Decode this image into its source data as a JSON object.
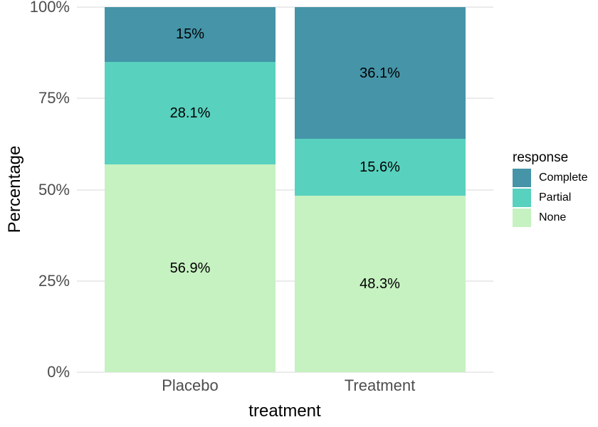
{
  "chart_data": {
    "type": "bar",
    "subtype": "stacked_percentage",
    "title": "",
    "xlabel": "treatment",
    "ylabel": "Percentage",
    "categories": [
      "Placebo",
      "Treatment"
    ],
    "series": [
      {
        "name": "Complete",
        "color": "#4594A8",
        "values": [
          15,
          36.1
        ],
        "labels": [
          "15%",
          "36.1%"
        ]
      },
      {
        "name": "Partial",
        "color": "#58D1BE",
        "values": [
          28.1,
          15.6
        ],
        "labels": [
          "28.1%",
          "15.6%"
        ]
      },
      {
        "name": "None",
        "color": "#C6F1C1",
        "values": [
          56.9,
          48.3
        ],
        "labels": [
          "56.9%",
          "48.3%"
        ]
      }
    ],
    "stack_order_bottom_to_top": [
      "None",
      "Partial",
      "Complete"
    ],
    "yticks": [
      {
        "label": "0%",
        "value": 0
      },
      {
        "label": "25%",
        "value": 25
      },
      {
        "label": "50%",
        "value": 50
      },
      {
        "label": "75%",
        "value": 75
      },
      {
        "label": "100%",
        "value": 100
      }
    ],
    "ylim": [
      0,
      100
    ],
    "grid": "horizontal-major-only",
    "legend": {
      "title": "response",
      "position": "right",
      "items": [
        {
          "label": "Complete",
          "color": "#4594A8"
        },
        {
          "label": "Partial",
          "color": "#58D1BE"
        },
        {
          "label": "None",
          "color": "#C6F1C1"
        }
      ]
    },
    "colors": {
      "grid": "#EBEBEB",
      "tick_text": "#4D4D4D",
      "title_text": "#000000",
      "label_text": "#000000",
      "background": "#FFFFFF"
    }
  }
}
